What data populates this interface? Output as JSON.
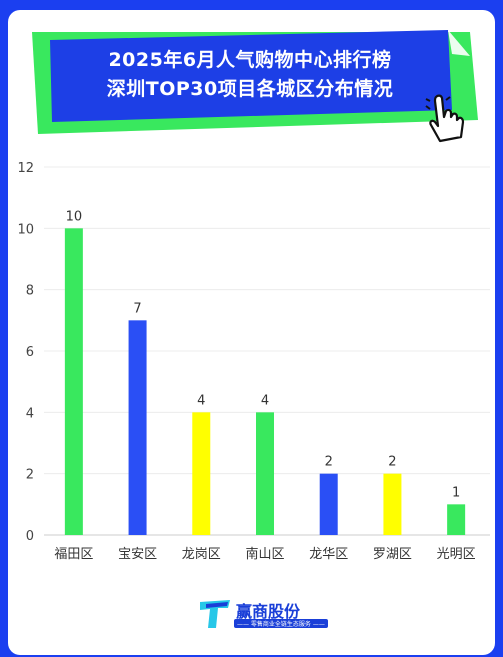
{
  "banner": {
    "line1": "2025年6月人气购物中心排行榜",
    "line2": "深圳TOP30项目各城区分布情况"
  },
  "logo": {
    "name": "赢商股份",
    "slogan": "—— 零售商业全链生态服务 ——"
  },
  "colors": {
    "background": "#1b3ff0",
    "green": "#39e85e",
    "blue": "#2a4ff5",
    "yellow": "#ffff00",
    "banner_green": "#39e85e",
    "banner_blue": "#1d3fe6"
  },
  "chart_data": {
    "type": "bar",
    "categories": [
      "福田区",
      "宝安区",
      "龙岗区",
      "南山区",
      "龙华区",
      "罗湖区",
      "光明区"
    ],
    "values": [
      10,
      7,
      4,
      4,
      2,
      2,
      1
    ],
    "bar_colors": [
      "#39e85e",
      "#2a4ff5",
      "#ffff00",
      "#39e85e",
      "#2a4ff5",
      "#ffff00",
      "#39e85e"
    ],
    "yticks": [
      0,
      2,
      4,
      6,
      8,
      10,
      12
    ],
    "ylim": [
      0,
      12
    ],
    "grid": true,
    "legend": "none",
    "data_labels": true
  }
}
